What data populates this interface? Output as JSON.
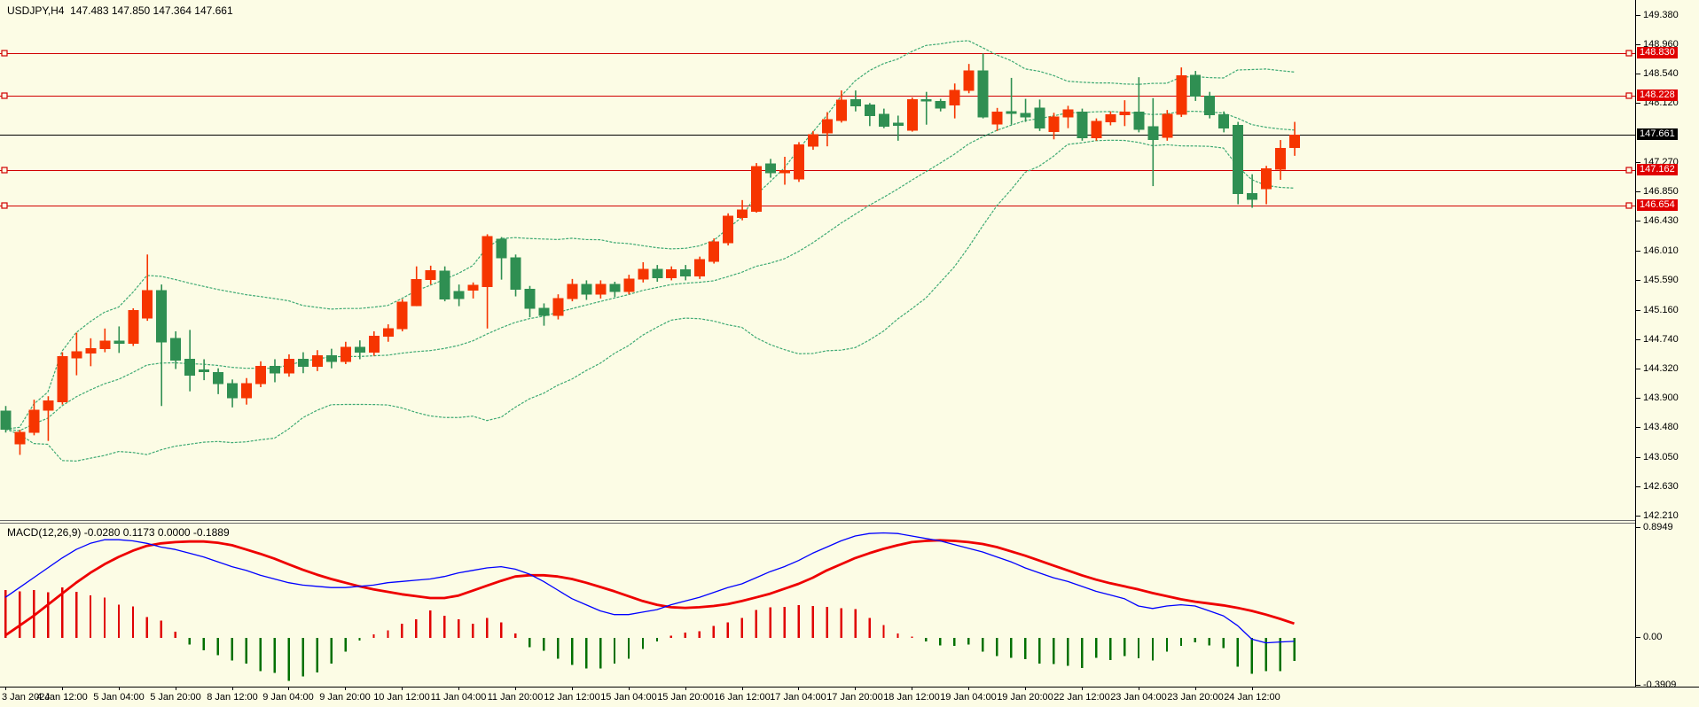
{
  "header": {
    "title": "USDJPY,H4  147.483 147.850 147.364 147.661"
  },
  "macd_header": {
    "title": "MACD(12,26,9) -0.0280 0.1173 0.0000 -0.1889"
  },
  "colors": {
    "background": "#fcfce5",
    "bull": "#f63500",
    "bear": "#2f8f52",
    "bollinger": "#3faa74",
    "level_line": "#d10000",
    "current_line": "#000000",
    "macd_line": "#0000ff",
    "signal_line": "#ee0000",
    "hist_positive": "#e00000",
    "hist_negative": "#007000",
    "axis_text": "#000000",
    "badge_level_bg": "#e00000",
    "badge_current_bg": "#000000"
  },
  "price_axis": {
    "ticks": [
      "149.380",
      "148.960",
      "148.540",
      "148.120",
      "147.270",
      "146.850",
      "146.430",
      "146.010",
      "145.590",
      "145.160",
      "144.740",
      "144.320",
      "143.900",
      "143.480",
      "143.050",
      "142.630",
      "142.210"
    ],
    "tick_values": [
      149.38,
      148.96,
      148.54,
      148.12,
      147.27,
      146.85,
      146.43,
      146.01,
      145.59,
      145.16,
      144.74,
      144.32,
      143.9,
      143.48,
      143.05,
      142.63,
      142.21
    ],
    "badges": [
      {
        "label": "148.830",
        "value": 148.83,
        "type": "level"
      },
      {
        "label": "148.228",
        "value": 148.228,
        "type": "level"
      },
      {
        "label": "147.661",
        "value": 147.661,
        "type": "current"
      },
      {
        "label": "147.162",
        "value": 147.162,
        "type": "level"
      },
      {
        "label": "146.654",
        "value": 146.654,
        "type": "level"
      }
    ]
  },
  "macd_axis": {
    "labels": [
      {
        "label": "0.8949",
        "value": 0.8949
      },
      {
        "label": "0.00",
        "value": 0.0
      },
      {
        "label": "-0.3909",
        "value": -0.3909
      }
    ]
  },
  "time_axis": {
    "labels": [
      "3 Jan 2024",
      "4 Jan 12:00",
      "5 Jan 04:00",
      "5 Jan 20:00",
      "8 Jan 12:00",
      "9 Jan 04:00",
      "9 Jan 20:00",
      "10 Jan 12:00",
      "11 Jan 04:00",
      "11 Jan 20:00",
      "12 Jan 12:00",
      "15 Jan 04:00",
      "15 Jan 20:00",
      "16 Jan 12:00",
      "17 Jan 04:00",
      "17 Jan 20:00",
      "18 Jan 12:00",
      "19 Jan 04:00",
      "19 Jan 20:00",
      "22 Jan 12:00",
      "23 Jan 04:00",
      "23 Jan 20:00",
      "24 Jan 12:00"
    ],
    "bars_per_label": 4
  },
  "chart_data": {
    "type": "candlestick",
    "symbol": "USDJPY",
    "timeframe": "H4",
    "ohlc_current": {
      "open": 147.483,
      "high": 147.85,
      "low": 147.364,
      "close": 147.661
    },
    "price_ylim": [
      142.146,
      149.596
    ],
    "horizontal_levels": [
      148.83,
      148.228,
      147.162,
      146.654
    ],
    "current_price": 147.661,
    "bollinger": {
      "period": 20,
      "deviation": 2
    },
    "candles_ohlc": [
      [
        143.71,
        143.78,
        143.4,
        143.45
      ],
      [
        143.24,
        143.44,
        143.08,
        143.4
      ],
      [
        143.4,
        143.87,
        143.36,
        143.72
      ],
      [
        143.72,
        143.92,
        143.28,
        143.85
      ],
      [
        143.84,
        144.55,
        143.8,
        144.49
      ],
      [
        144.47,
        144.83,
        144.22,
        144.56
      ],
      [
        144.54,
        144.75,
        144.35,
        144.6
      ],
      [
        144.6,
        144.89,
        144.55,
        144.71
      ],
      [
        144.71,
        144.92,
        144.54,
        144.68
      ],
      [
        144.68,
        145.18,
        144.64,
        145.15
      ],
      [
        145.04,
        145.95,
        145.0,
        145.43
      ],
      [
        145.43,
        145.52,
        143.78,
        144.7
      ],
      [
        144.75,
        144.85,
        144.31,
        144.44
      ],
      [
        144.45,
        144.87,
        143.99,
        144.22
      ],
      [
        144.3,
        144.45,
        144.15,
        144.27
      ],
      [
        144.26,
        144.32,
        143.95,
        144.1
      ],
      [
        144.1,
        144.16,
        143.76,
        143.9
      ],
      [
        143.9,
        144.18,
        143.8,
        144.1
      ],
      [
        144.1,
        144.42,
        144.05,
        144.35
      ],
      [
        144.35,
        144.45,
        144.12,
        144.25
      ],
      [
        144.25,
        144.52,
        144.2,
        144.45
      ],
      [
        144.45,
        144.55,
        144.25,
        144.35
      ],
      [
        144.35,
        144.58,
        144.28,
        144.5
      ],
      [
        144.5,
        144.6,
        144.32,
        144.42
      ],
      [
        144.42,
        144.7,
        144.38,
        144.62
      ],
      [
        144.62,
        144.72,
        144.45,
        144.55
      ],
      [
        144.55,
        144.85,
        144.5,
        144.78
      ],
      [
        144.78,
        144.95,
        144.7,
        144.89
      ],
      [
        144.89,
        145.31,
        144.85,
        145.27
      ],
      [
        145.22,
        145.78,
        145.21,
        145.59
      ],
      [
        145.59,
        145.79,
        145.52,
        145.72
      ],
      [
        145.71,
        145.78,
        145.28,
        145.31
      ],
      [
        145.42,
        145.52,
        145.21,
        145.32
      ],
      [
        145.44,
        145.55,
        145.32,
        145.51
      ],
      [
        145.49,
        146.24,
        144.89,
        146.21
      ],
      [
        146.17,
        146.2,
        145.59,
        145.9
      ],
      [
        145.9,
        145.95,
        145.35,
        145.45
      ],
      [
        145.45,
        145.5,
        145.05,
        145.18
      ],
      [
        145.18,
        145.25,
        144.93,
        145.08
      ],
      [
        145.08,
        145.38,
        145.02,
        145.32
      ],
      [
        145.32,
        145.6,
        145.28,
        145.52
      ],
      [
        145.52,
        145.58,
        145.3,
        145.38
      ],
      [
        145.38,
        145.58,
        145.32,
        145.52
      ],
      [
        145.52,
        145.56,
        145.34,
        145.42
      ],
      [
        145.42,
        145.66,
        145.38,
        145.6
      ],
      [
        145.6,
        145.84,
        145.55,
        145.74
      ],
      [
        145.74,
        145.8,
        145.56,
        145.62
      ],
      [
        145.62,
        145.78,
        145.58,
        145.73
      ],
      [
        145.73,
        145.8,
        145.58,
        145.64
      ],
      [
        145.64,
        145.92,
        145.6,
        145.88
      ],
      [
        145.85,
        146.18,
        145.82,
        146.13
      ],
      [
        146.12,
        146.54,
        146.08,
        146.5
      ],
      [
        146.48,
        146.73,
        146.44,
        146.59
      ],
      [
        146.57,
        147.26,
        146.55,
        147.21
      ],
      [
        147.25,
        147.32,
        147.05,
        147.12
      ],
      [
        147.12,
        147.35,
        146.95,
        147.15
      ],
      [
        147.03,
        147.56,
        146.99,
        147.52
      ],
      [
        147.5,
        147.72,
        147.45,
        147.67
      ],
      [
        147.69,
        147.99,
        147.5,
        147.88
      ],
      [
        147.87,
        148.3,
        147.84,
        148.16
      ],
      [
        148.17,
        148.3,
        148.0,
        148.08
      ],
      [
        148.09,
        148.12,
        147.79,
        147.94
      ],
      [
        147.96,
        148.04,
        147.76,
        147.79
      ],
      [
        147.83,
        147.94,
        147.58,
        147.8
      ],
      [
        147.73,
        148.2,
        147.71,
        148.17
      ],
      [
        148.17,
        148.28,
        147.81,
        148.15
      ],
      [
        148.14,
        148.18,
        148.0,
        148.05
      ],
      [
        148.09,
        148.4,
        147.9,
        148.3
      ],
      [
        148.3,
        148.68,
        148.26,
        148.58
      ],
      [
        148.58,
        148.83,
        147.9,
        147.92
      ],
      [
        147.82,
        148.05,
        147.72,
        147.99
      ],
      [
        148.0,
        148.48,
        147.81,
        147.97
      ],
      [
        147.97,
        148.18,
        147.85,
        147.92
      ],
      [
        148.05,
        148.17,
        147.72,
        147.76
      ],
      [
        147.71,
        147.98,
        147.6,
        147.92
      ],
      [
        147.92,
        148.08,
        147.76,
        148.02
      ],
      [
        147.99,
        148.04,
        147.58,
        147.62
      ],
      [
        147.62,
        147.9,
        147.58,
        147.86
      ],
      [
        147.85,
        148.0,
        147.8,
        147.95
      ],
      [
        147.95,
        148.16,
        147.79,
        147.99
      ],
      [
        147.99,
        148.49,
        147.7,
        147.74
      ],
      [
        147.78,
        148.19,
        146.93,
        147.6
      ],
      [
        147.63,
        148.02,
        147.58,
        147.96
      ],
      [
        147.96,
        148.63,
        147.92,
        148.51
      ],
      [
        148.52,
        148.58,
        148.15,
        148.22
      ],
      [
        148.22,
        148.28,
        147.9,
        147.95
      ],
      [
        147.95,
        148.0,
        147.7,
        147.76
      ],
      [
        147.8,
        147.85,
        146.67,
        146.82
      ],
      [
        146.82,
        147.1,
        146.62,
        146.74
      ],
      [
        146.89,
        147.22,
        146.67,
        147.18
      ],
      [
        147.17,
        147.59,
        147.02,
        147.47
      ],
      [
        147.483,
        147.85,
        147.364,
        147.661
      ]
    ],
    "macd": {
      "params": "12,26,9",
      "ylim": [
        -0.404,
        0.931
      ],
      "line": [
        0.33,
        0.41,
        0.49,
        0.57,
        0.65,
        0.72,
        0.77,
        0.8,
        0.8,
        0.79,
        0.77,
        0.74,
        0.72,
        0.69,
        0.66,
        0.62,
        0.58,
        0.55,
        0.51,
        0.48,
        0.45,
        0.43,
        0.42,
        0.41,
        0.41,
        0.42,
        0.43,
        0.45,
        0.46,
        0.47,
        0.48,
        0.5,
        0.53,
        0.55,
        0.57,
        0.58,
        0.56,
        0.52,
        0.46,
        0.39,
        0.32,
        0.27,
        0.22,
        0.19,
        0.19,
        0.21,
        0.23,
        0.27,
        0.3,
        0.33,
        0.37,
        0.41,
        0.44,
        0.49,
        0.54,
        0.58,
        0.63,
        0.69,
        0.74,
        0.79,
        0.83,
        0.85,
        0.855,
        0.85,
        0.83,
        0.81,
        0.79,
        0.76,
        0.73,
        0.7,
        0.66,
        0.62,
        0.57,
        0.53,
        0.49,
        0.46,
        0.42,
        0.38,
        0.35,
        0.32,
        0.26,
        0.24,
        0.26,
        0.27,
        0.26,
        0.22,
        0.18,
        0.1,
        -0.01,
        -0.04,
        -0.033,
        -0.028
      ],
      "signal": [
        0.02,
        0.1,
        0.18,
        0.27,
        0.36,
        0.45,
        0.53,
        0.6,
        0.66,
        0.71,
        0.75,
        0.77,
        0.78,
        0.785,
        0.785,
        0.775,
        0.755,
        0.72,
        0.685,
        0.645,
        0.6,
        0.555,
        0.515,
        0.48,
        0.45,
        0.42,
        0.395,
        0.375,
        0.355,
        0.34,
        0.325,
        0.325,
        0.345,
        0.385,
        0.425,
        0.465,
        0.5,
        0.51,
        0.51,
        0.5,
        0.48,
        0.45,
        0.415,
        0.38,
        0.34,
        0.3,
        0.27,
        0.25,
        0.245,
        0.25,
        0.26,
        0.275,
        0.3,
        0.33,
        0.36,
        0.4,
        0.44,
        0.49,
        0.55,
        0.6,
        0.65,
        0.69,
        0.725,
        0.755,
        0.78,
        0.79,
        0.795,
        0.79,
        0.78,
        0.765,
        0.74,
        0.705,
        0.67,
        0.63,
        0.59,
        0.55,
        0.51,
        0.475,
        0.445,
        0.42,
        0.395,
        0.365,
        0.34,
        0.315,
        0.295,
        0.28,
        0.265,
        0.245,
        0.22,
        0.19,
        0.155,
        0.117
      ],
      "histogram": [
        0.39,
        0.38,
        0.39,
        0.37,
        0.41,
        0.375,
        0.345,
        0.33,
        0.27,
        0.257,
        0.17,
        0.14,
        0.05,
        -0.053,
        -0.1,
        -0.14,
        -0.185,
        -0.209,
        -0.27,
        -0.285,
        -0.35,
        -0.315,
        -0.28,
        -0.209,
        -0.113,
        -0.02,
        0.03,
        0.06,
        0.115,
        0.152,
        0.224,
        0.18,
        0.152,
        0.115,
        0.164,
        0.128,
        0.036,
        -0.077,
        -0.106,
        -0.168,
        -0.221,
        -0.25,
        -0.25,
        -0.209,
        -0.168,
        -0.089,
        -0.029,
        0.019,
        0.043,
        0.056,
        0.099,
        0.128,
        0.164,
        0.229,
        0.248,
        0.253,
        0.267,
        0.26,
        0.253,
        0.243,
        0.236,
        0.164,
        0.103,
        0.036,
        0.012,
        -0.029,
        -0.06,
        -0.065,
        -0.053,
        -0.113,
        -0.149,
        -0.161,
        -0.173,
        -0.209,
        -0.214,
        -0.228,
        -0.245,
        -0.161,
        -0.18,
        -0.149,
        -0.166,
        -0.185,
        -0.113,
        -0.065,
        -0.036,
        -0.06,
        -0.084,
        -0.233,
        -0.293,
        -0.269,
        -0.269,
        -0.189
      ]
    }
  }
}
